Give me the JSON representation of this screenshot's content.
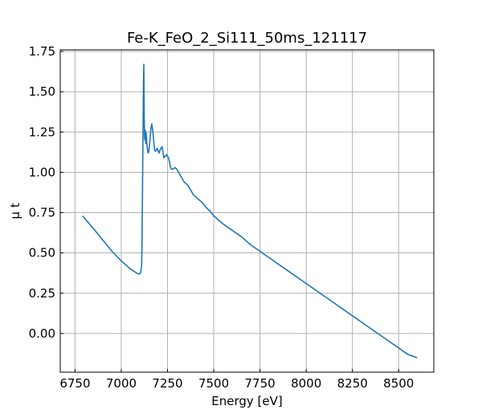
{
  "chart_data": {
    "type": "line",
    "title": "Fe-K_FeO_2_Si111_50ms_121117",
    "xlabel": "Energy [eV]",
    "ylabel": "μ t",
    "xlim": [
      6670,
      8690
    ],
    "ylim": [
      -0.24,
      1.76
    ],
    "x_ticks": [
      6750,
      7000,
      7250,
      7500,
      7750,
      8000,
      8250,
      8500
    ],
    "y_ticks": [
      0.0,
      0.25,
      0.5,
      0.75,
      1.0,
      1.25,
      1.5,
      1.75
    ],
    "x_tick_labels": [
      "6750",
      "7000",
      "7250",
      "7500",
      "7750",
      "8000",
      "8250",
      "8500"
    ],
    "y_tick_labels": [
      "0.00",
      "0.25",
      "0.50",
      "0.75",
      "1.00",
      "1.25",
      "1.50",
      "1.75"
    ],
    "grid": true,
    "color": "#1f77b4",
    "series": [
      {
        "x": [
          6790,
          6850,
          6900,
          6950,
          7000,
          7050,
          7090,
          7100,
          7105,
          7110,
          7112,
          7114,
          7116,
          7118,
          7120,
          7122,
          7124,
          7126,
          7128,
          7130,
          7132,
          7134,
          7136,
          7138,
          7140,
          7143,
          7146,
          7150,
          7155,
          7160,
          7165,
          7170,
          7175,
          7180,
          7185,
          7190,
          7195,
          7200,
          7205,
          7210,
          7215,
          7220,
          7225,
          7230,
          7235,
          7240,
          7245,
          7250,
          7255,
          7260,
          7265,
          7270,
          7280,
          7290,
          7300,
          7310,
          7320,
          7330,
          7340,
          7350,
          7360,
          7375,
          7390,
          7400,
          7420,
          7440,
          7460,
          7480,
          7500,
          7550,
          7600,
          7650,
          7700,
          7750,
          7800,
          7850,
          7900,
          7950,
          8000,
          8050,
          8100,
          8150,
          8200,
          8250,
          8300,
          8350,
          8400,
          8450,
          8500,
          8550,
          8600
        ],
        "y": [
          0.73,
          0.65,
          0.58,
          0.51,
          0.45,
          0.4,
          0.37,
          0.37,
          0.38,
          0.42,
          0.55,
          0.8,
          1.05,
          1.3,
          1.55,
          1.67,
          1.35,
          1.22,
          1.2,
          1.26,
          1.18,
          1.25,
          1.22,
          1.18,
          1.16,
          1.13,
          1.12,
          1.14,
          1.2,
          1.27,
          1.3,
          1.26,
          1.2,
          1.14,
          1.13,
          1.14,
          1.15,
          1.13,
          1.12,
          1.14,
          1.15,
          1.16,
          1.13,
          1.09,
          1.1,
          1.1,
          1.11,
          1.1,
          1.09,
          1.07,
          1.04,
          1.02,
          1.02,
          1.03,
          1.02,
          1.0,
          0.98,
          0.96,
          0.94,
          0.93,
          0.92,
          0.89,
          0.86,
          0.85,
          0.83,
          0.81,
          0.78,
          0.76,
          0.73,
          0.68,
          0.64,
          0.6,
          0.55,
          0.51,
          0.47,
          0.43,
          0.39,
          0.35,
          0.31,
          0.27,
          0.23,
          0.19,
          0.15,
          0.11,
          0.07,
          0.03,
          -0.01,
          -0.05,
          -0.09,
          -0.13,
          -0.15
        ]
      }
    ]
  }
}
